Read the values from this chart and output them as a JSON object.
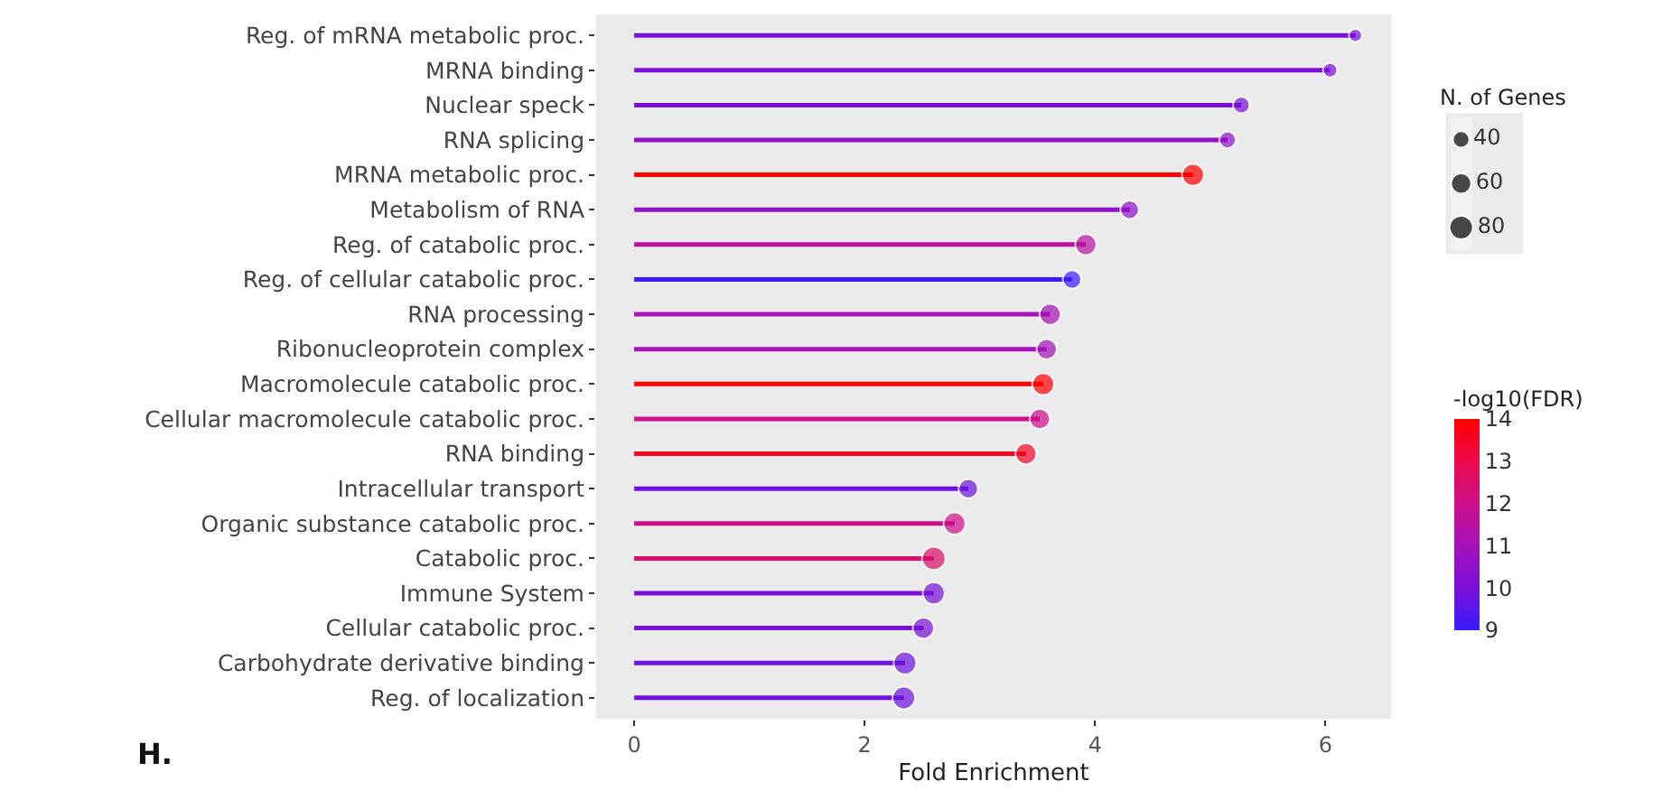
{
  "chart_data": {
    "type": "lollipop",
    "orientation": "horizontal",
    "xlabel": "Fold Enrichment",
    "legend_title": "N. of Genes",
    "clabel": "-log10(FDR)",
    "categories": [
      "Reg. of mRNA metabolic proc.",
      "MRNA binding",
      "Nuclear speck",
      "RNA splicing",
      "MRNA metabolic proc.",
      "Metabolism of RNA",
      "Reg. of catabolic proc.",
      "Reg. of cellular catabolic proc.",
      "RNA processing",
      "Ribonucleoprotein complex",
      "Macromolecule catabolic proc.",
      "Cellular macromolecule catabolic proc.",
      "RNA binding",
      "Intracellular transport",
      "Organic substance catabolic proc.",
      "Catabolic proc.",
      "Immune System",
      "Cellular catabolic proc.",
      "Carbohydrate derivative binding",
      "Reg. of localization"
    ],
    "values": [
      6.26,
      6.04,
      5.27,
      5.15,
      4.85,
      4.3,
      3.92,
      3.8,
      3.61,
      3.58,
      3.55,
      3.52,
      3.4,
      2.9,
      2.78,
      2.6,
      2.6,
      2.51,
      2.35,
      2.34
    ],
    "sizes": [
      25,
      30,
      40,
      40,
      70,
      50,
      65,
      50,
      65,
      60,
      70,
      60,
      65,
      55,
      70,
      80,
      70,
      65,
      75,
      75
    ],
    "size_legend": [
      40,
      60,
      80
    ],
    "cvalues": [
      10,
      10,
      10,
      10.5,
      14,
      10.5,
      11.5,
      9,
      11,
      11,
      14,
      12,
      13.5,
      9.8,
      12,
      12.5,
      10,
      10,
      9.8,
      9.8
    ],
    "clim": [
      9,
      14
    ],
    "cticks": [
      9,
      10,
      11,
      12,
      13,
      14
    ],
    "xlim": [
      -0.33,
      6.57
    ],
    "xticks": [
      0,
      2,
      4,
      6
    ],
    "grid": false,
    "marker": "circle",
    "annotations": [
      "H."
    ]
  }
}
